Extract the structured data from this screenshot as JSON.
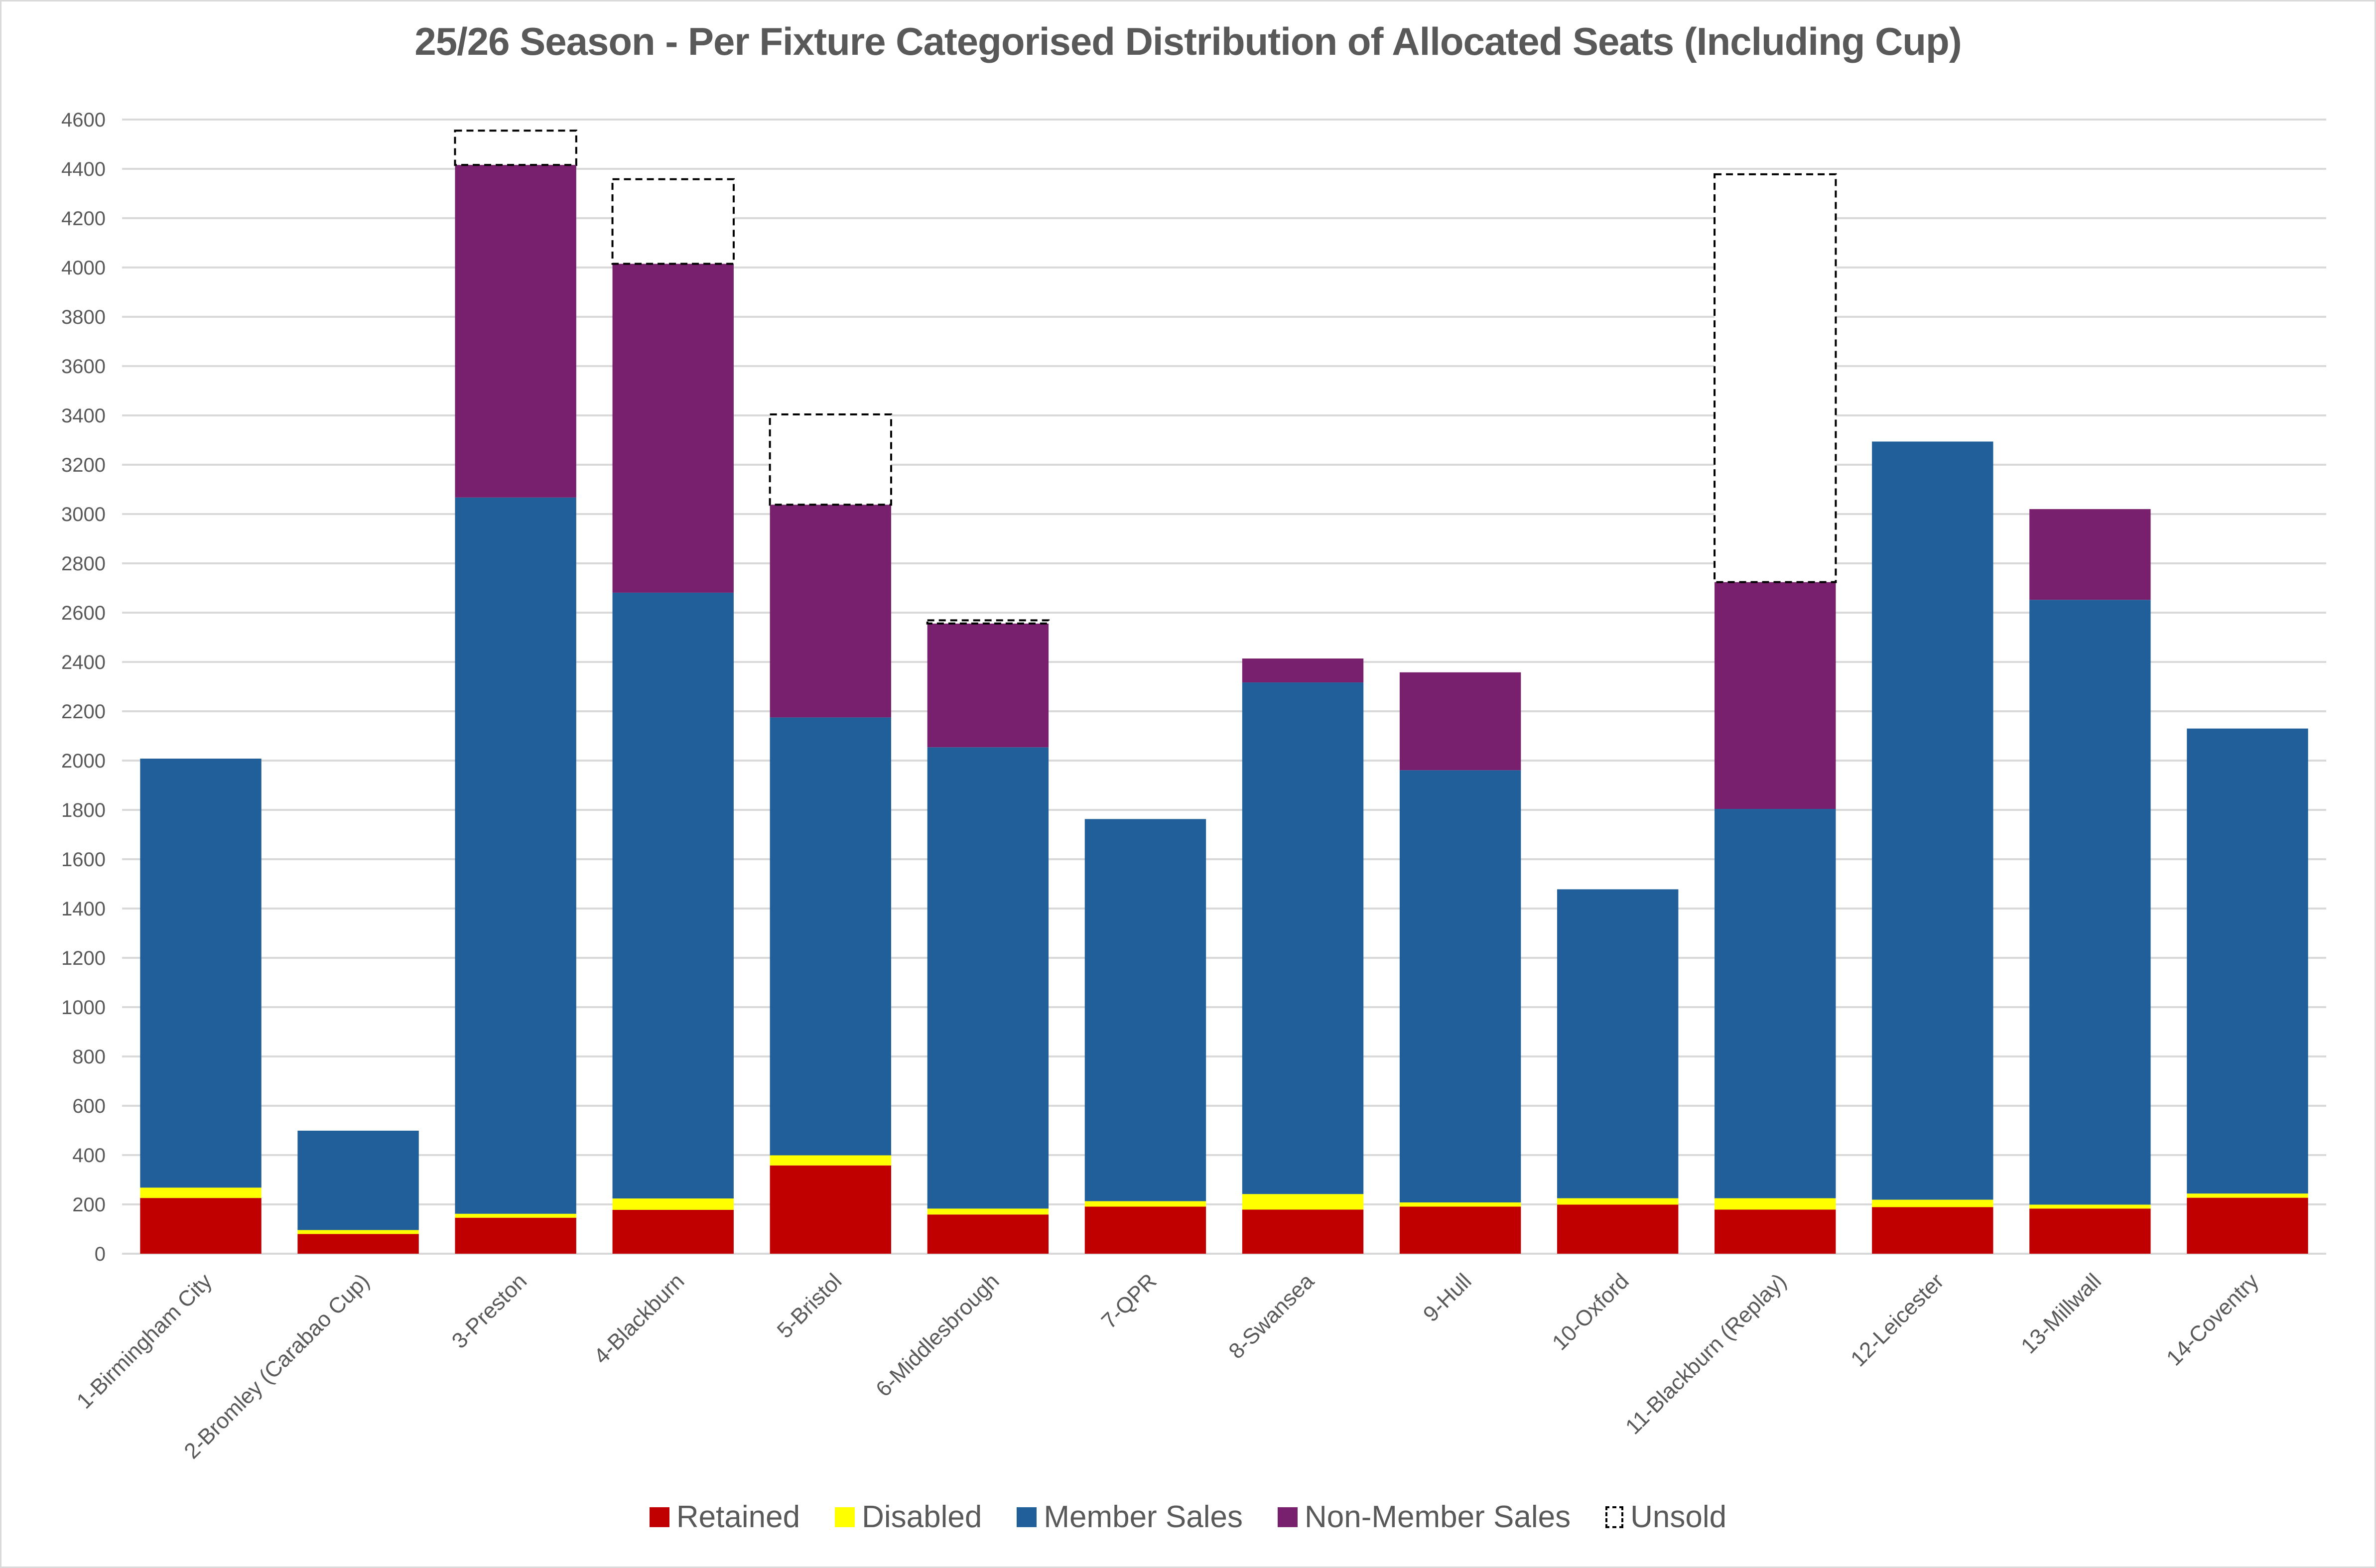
{
  "chart_data": {
    "type": "bar",
    "stacked": true,
    "title": "25/26 Season - Per Fixture Categorised Distribution of Allocated Seats (Including Cup)",
    "xlabel": "",
    "ylabel": "",
    "ylim": [
      0,
      4600
    ],
    "yticks": [
      0,
      200,
      400,
      600,
      800,
      1000,
      1200,
      1400,
      1600,
      1800,
      2000,
      2200,
      2400,
      2600,
      2800,
      3000,
      3200,
      3400,
      3600,
      3800,
      4000,
      4200,
      4400,
      4600
    ],
    "grid": true,
    "legend_position": "bottom",
    "categories": [
      "1-Birmingham City",
      "2-Bromley (Carabao Cup)",
      "3-Preston",
      "4-Blackburn",
      "5-Bristol",
      "6-Middlesbrough",
      "7-QPR",
      "8-Swansea",
      "9-Hull",
      "10-Oxford",
      "11-Blackburn (Replay)",
      "12-Leicester",
      "13-Millwall",
      "14-Coventry"
    ],
    "series": [
      {
        "name": "Retained",
        "color": "#c00000",
        "style": "solid",
        "values": [
          226,
          80,
          146,
          178,
          358,
          159,
          191,
          179,
          191,
          199,
          179,
          189,
          183,
          227
        ]
      },
      {
        "name": "Disabled",
        "color": "#ffff00",
        "style": "solid",
        "values": [
          42,
          16,
          16,
          46,
          41,
          24,
          22,
          63,
          17,
          26,
          46,
          30,
          16,
          17
        ]
      },
      {
        "name": "Member Sales",
        "color": "#215f9a",
        "style": "solid",
        "values": [
          1740,
          403,
          2905,
          2457,
          1776,
          1871,
          1550,
          2075,
          1753,
          1253,
          1579,
          3075,
          2453,
          1886
        ]
      },
      {
        "name": "Non-Member Sales",
        "color": "#78206e",
        "style": "solid",
        "values": [
          0,
          0,
          1349,
          1334,
          863,
          502,
          0,
          97,
          397,
          0,
          920,
          0,
          368,
          0
        ]
      },
      {
        "name": "Unsold",
        "color": "#ffffff",
        "style": "dashed",
        "values": [
          0,
          0,
          139,
          343,
          366,
          13,
          0,
          0,
          0,
          0,
          1654,
          0,
          0,
          0
        ]
      }
    ]
  }
}
